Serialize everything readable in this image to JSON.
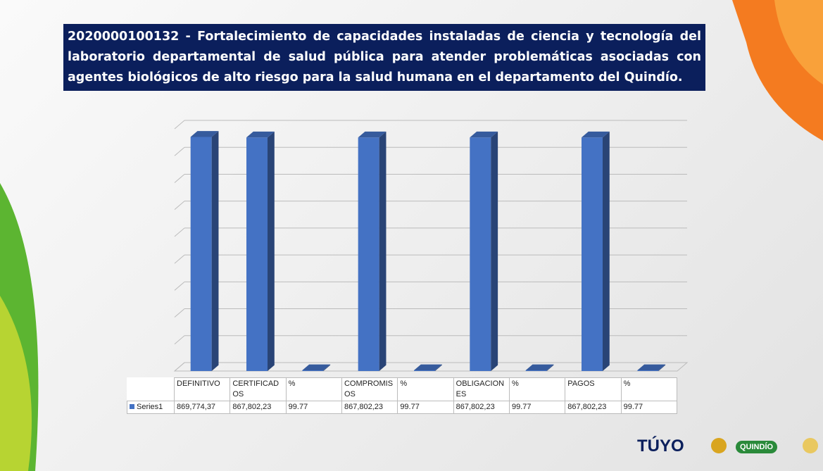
{
  "header": {
    "title": "2020000100132  - Fortalecimiento de capacidades instaladas de ciencia y tecnología del laboratorio departamental de salud pública para atender problemáticas asociadas con agentes biológicos de alto riesgo para la salud humana en el departamento del Quindío."
  },
  "chart_data": {
    "type": "bar3d",
    "categories": [
      "DEFINITIVO",
      "CERTIFICADOS",
      "%",
      "COMPROMISOS",
      "%",
      "OBLIGACIONES",
      "%",
      "PAGOS",
      "%"
    ],
    "series": [
      {
        "name": "Series1",
        "color": "#4472c4",
        "values": [
          869774.37,
          867802.23,
          99.77,
          867802.23,
          99.77,
          867802.23,
          99.77,
          867802.23,
          99.77
        ],
        "value_labels": [
          "869,774,37",
          "867,802,23",
          "99.77",
          "867,802,23",
          "99.77",
          "867,802,23",
          "99.77",
          "867,802,23",
          "99.77"
        ]
      }
    ],
    "ylim": [
      0,
      900000
    ],
    "grid": true
  },
  "logos": {
    "brand": "TÚYO",
    "department": "QUINDÍO"
  }
}
